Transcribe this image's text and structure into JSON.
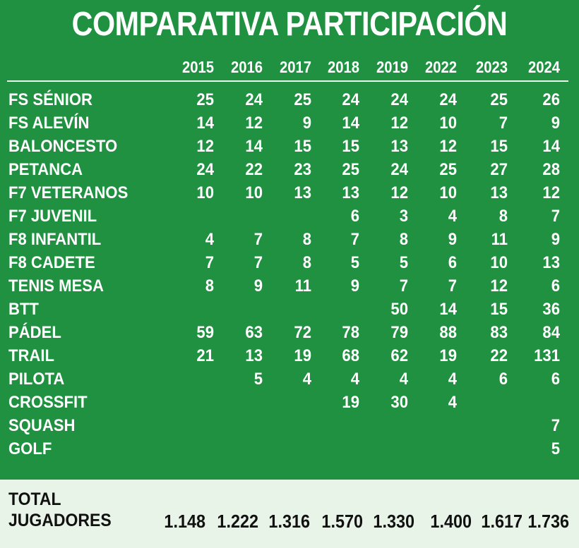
{
  "title": "COMPARATIVA PARTICIPACIÓN",
  "colors": {
    "background": "#1f9140",
    "text": "#ffffff",
    "total_band": "#e9f4e8",
    "total_text": "#111111"
  },
  "chart_data": {
    "type": "table",
    "title": "COMPARATIVA PARTICIPACIÓN",
    "columns": [
      "2015",
      "2016",
      "2017",
      "2018",
      "2019",
      "2022",
      "2023",
      "2024"
    ],
    "rows": [
      {
        "label": "FS SÉNIOR",
        "values": [
          "25",
          "24",
          "25",
          "24",
          "24",
          "24",
          "25",
          "26"
        ]
      },
      {
        "label": "FS ALEVÍN",
        "values": [
          "14",
          "12",
          "9",
          "14",
          "12",
          "10",
          "7",
          "9"
        ]
      },
      {
        "label": "BALONCESTO",
        "values": [
          "12",
          "14",
          "15",
          "15",
          "13",
          "12",
          "15",
          "14"
        ]
      },
      {
        "label": "PETANCA",
        "values": [
          "24",
          "22",
          "23",
          "25",
          "24",
          "25",
          "27",
          "28"
        ]
      },
      {
        "label": "F7 VETERANOS",
        "values": [
          "10",
          "10",
          "13",
          "13",
          "12",
          "10",
          "13",
          "12"
        ]
      },
      {
        "label": "F7 JUVENIL",
        "values": [
          "",
          "",
          "",
          "6",
          "3",
          "4",
          "8",
          "7"
        ]
      },
      {
        "label": "F8 INFANTIL",
        "values": [
          "4",
          "7",
          "8",
          "7",
          "8",
          "9",
          "11",
          "9"
        ]
      },
      {
        "label": "F8 CADETE",
        "values": [
          "7",
          "7",
          "8",
          "5",
          "5",
          "6",
          "10",
          "13"
        ]
      },
      {
        "label": "TENIS MESA",
        "values": [
          "8",
          "9",
          "11",
          "9",
          "7",
          "7",
          "12",
          "6"
        ]
      },
      {
        "label": "BTT",
        "values": [
          "",
          "",
          "",
          "",
          "50",
          "14",
          "15",
          "36"
        ]
      },
      {
        "label": "PÁDEL",
        "values": [
          "59",
          "63",
          "72",
          "78",
          "79",
          "88",
          "83",
          "84"
        ]
      },
      {
        "label": "TRAIL",
        "values": [
          "21",
          "13",
          "19",
          "68",
          "62",
          "19",
          "22",
          "131"
        ]
      },
      {
        "label": "PILOTA",
        "values": [
          "",
          "5",
          "4",
          "4",
          "4",
          "4",
          "6",
          "6"
        ]
      },
      {
        "label": "CROSSFIT",
        "values": [
          "",
          "",
          "",
          "19",
          "30",
          "4",
          "",
          ""
        ]
      },
      {
        "label": "SQUASH",
        "values": [
          "",
          "",
          "",
          "",
          "",
          "",
          "",
          "7"
        ]
      },
      {
        "label": "GOLF",
        "values": [
          "",
          "",
          "",
          "",
          "",
          "",
          "",
          "5"
        ]
      }
    ],
    "total": {
      "label_line1": "TOTAL",
      "label_line2": "JUGADORES",
      "values": [
        "1.148",
        "1.222",
        "1.316",
        "1.570",
        "1.330",
        "1.400",
        "1.617",
        "1.736"
      ]
    }
  }
}
